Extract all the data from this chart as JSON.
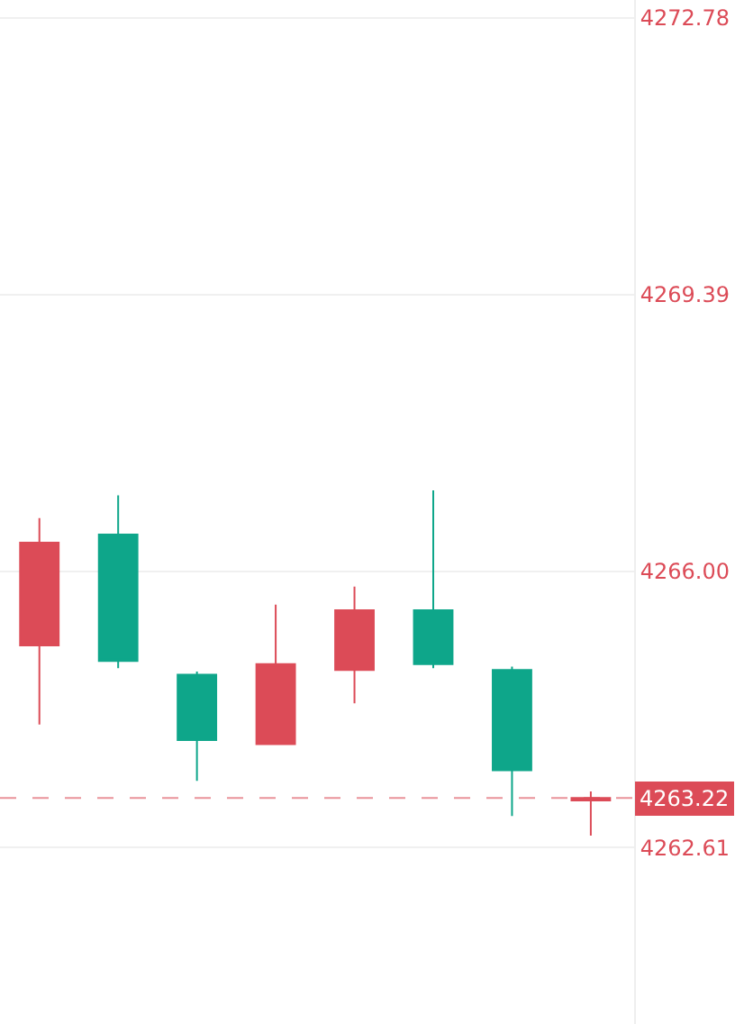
{
  "chart_data": {
    "type": "candlestick",
    "categories": [
      null,
      null,
      null,
      null,
      null,
      null,
      null,
      null
    ],
    "ohlc": [
      [
        4265.09,
        4266.65,
        4264.12,
        4266.35
      ],
      [
        4266.45,
        4266.93,
        4264.81,
        4264.9
      ],
      [
        4264.73,
        4264.77,
        4263.43,
        4263.93
      ],
      [
        4263.88,
        4265.59,
        4263.88,
        4264.86
      ],
      [
        4264.79,
        4265.81,
        4264.38,
        4265.52
      ],
      [
        4265.52,
        4266.99,
        4264.81,
        4264.86
      ],
      [
        4264.79,
        4264.83,
        4263.0,
        4263.56
      ],
      [
        4263.19,
        4263.3,
        4262.76,
        4263.22
      ]
    ],
    "colors": [
      "#dc4b57",
      "#0ea68a",
      "#0ea68a",
      "#dc4b57",
      "#dc4b57",
      "#0ea68a",
      "#0ea68a",
      "#dc4b57"
    ],
    "ylim": [
      4260.45,
      4273.0
    ],
    "yticks": [
      {
        "value": 4262.61,
        "label": "4262.61"
      },
      {
        "value": 4266.0,
        "label": "4266.00"
      },
      {
        "value": 4269.39,
        "label": "4269.39"
      },
      {
        "value": 4272.78,
        "label": "4272.78"
      }
    ],
    "ref_lines": [
      {
        "axis": "y",
        "value": 4263.22,
        "label": "4263.22",
        "color": "#dc4b57",
        "line_style": "dashed"
      }
    ],
    "grid": "y",
    "legend": false,
    "tick_labels": "y"
  }
}
